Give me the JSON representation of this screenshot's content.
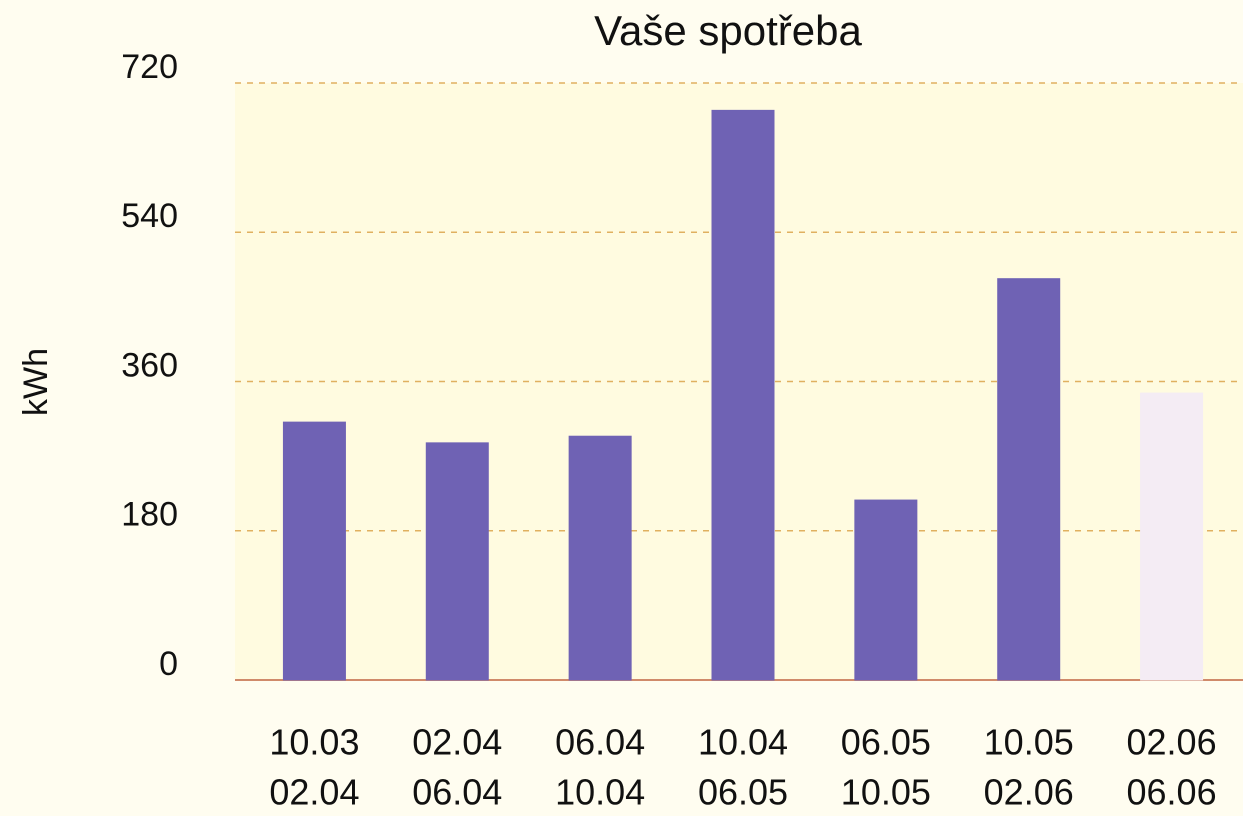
{
  "chart_data": {
    "type": "bar",
    "title": "Vaše spotřeba",
    "y_label": "kWh",
    "categories": [
      [
        "10.03",
        "02.04"
      ],
      [
        "02.04",
        "06.04"
      ],
      [
        "06.04",
        "10.04"
      ],
      [
        "10.04",
        "06.05"
      ],
      [
        "06.05",
        "10.05"
      ],
      [
        "10.05",
        "02.06"
      ],
      [
        "02.06",
        "06.06"
      ]
    ],
    "values": [
      311,
      286,
      294,
      687,
      217,
      484,
      346
    ],
    "colors": [
      "#6f62b4",
      "#6f62b4",
      "#6f62b4",
      "#6f62b4",
      "#6f62b4",
      "#6f62b4",
      "#f4ecf4"
    ],
    "ylim": [
      0,
      720
    ],
    "yticks": [
      0,
      180,
      360,
      540,
      720
    ],
    "grid": true
  }
}
